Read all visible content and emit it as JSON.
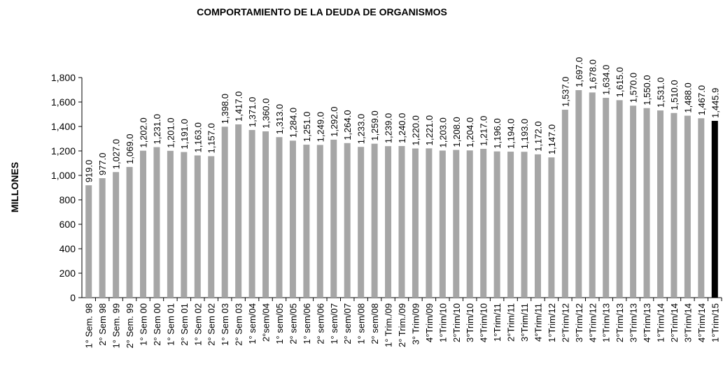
{
  "chart_data": {
    "type": "bar",
    "title": "COMPORTAMIENTO DE LA DEUDA DE ORGANISMOS",
    "y_label": "MILLONES",
    "categories": [
      "1° Sem. 98",
      "2° Sem 98",
      "1° Sem. 99",
      "2° Sem. 99",
      "1° Sem 00",
      "2° Sem 00",
      "1° Sem 01",
      "2° Sem 01",
      "1° Sem 02",
      "2° Sem 02",
      "1° Sem 03",
      "2° Sem 03",
      "1° sem/04",
      "2°sem/04",
      "1° sem/05",
      "2° sem/05",
      "1° sem/06",
      "2° sem/06",
      "1° sem/07",
      "2° sem/07",
      "1° sem/08",
      "2° sem/08",
      "1° Trim./09",
      "2° Trim./09",
      "3° Trim/09",
      "4°Trim/09",
      "1°Trim/10",
      "2°Trim/10",
      "3°Trim/10",
      "4°Trim/10",
      "1°Trim/11",
      "2°Trim/11",
      "3°Trim/11",
      "4°Trim/11",
      "1°Trim/12",
      "2°Trim/12",
      "3°Trim/12",
      "4°Trim/12",
      "1°Trim/13",
      "2°Trim/13",
      "3°Trim/13",
      "4°Trim/13",
      "1°Trim/14",
      "2°Trim/14",
      "3°Trim/14",
      "4°Trim/14",
      "1°Trim/15"
    ],
    "values": [
      919,
      977,
      1027,
      1069,
      1202,
      1231,
      1201,
      1191,
      1163,
      1157,
      1398,
      1417,
      1371,
      1360,
      1313,
      1284,
      1251,
      1249,
      1292,
      1264,
      1233,
      1259,
      1239,
      1240,
      1220,
      1221,
      1203,
      1208,
      1204,
      1217,
      1196,
      1194,
      1193,
      1172,
      1147,
      1537,
      1697,
      1678,
      1634,
      1615,
      1570,
      1550,
      1531,
      1510,
      1488,
      1467,
      1445.9
    ],
    "value_labels": [
      "919.0",
      "977.0",
      "1,027.0",
      "1,069.0",
      "1,202.0",
      "1,231.0",
      "1,201.0",
      "1,191.0",
      "1,163.0",
      "1,157.0",
      "1,398.0",
      "1,417.0",
      "1,371.0",
      "1,360.0",
      "1,313.0",
      "1,284.0",
      "1,251.0",
      "1,249.0",
      "1,292.0",
      "1,264.0",
      "1,233.0",
      "1,259.0",
      "1,239.0",
      "1,240.0",
      "1,220.0",
      "1,221.0",
      "1,203.0",
      "1,208.0",
      "1,204.0",
      "1,217.0",
      "1,196.0",
      "1,194.0",
      "1,193.0",
      "1,172.0",
      "1,147.0",
      "1,537.0",
      "1,697.0",
      "1,678.0",
      "1,634.0",
      "1,615.0",
      "1,570.0",
      "1,550.0",
      "1,531.0",
      "1,510.0",
      "1,488.0",
      "1,467.0",
      "1,445.9"
    ],
    "colors": [
      "#a6a6a6",
      "#a6a6a6",
      "#a6a6a6",
      "#a6a6a6",
      "#a6a6a6",
      "#a6a6a6",
      "#a6a6a6",
      "#a6a6a6",
      "#a6a6a6",
      "#a6a6a6",
      "#a6a6a6",
      "#a6a6a6",
      "#a6a6a6",
      "#a6a6a6",
      "#a6a6a6",
      "#a6a6a6",
      "#a6a6a6",
      "#a6a6a6",
      "#a6a6a6",
      "#a6a6a6",
      "#a6a6a6",
      "#a6a6a6",
      "#a6a6a6",
      "#a6a6a6",
      "#a6a6a6",
      "#a6a6a6",
      "#a6a6a6",
      "#a6a6a6",
      "#a6a6a6",
      "#a6a6a6",
      "#a6a6a6",
      "#a6a6a6",
      "#a6a6a6",
      "#a6a6a6",
      "#a6a6a6",
      "#a6a6a6",
      "#a6a6a6",
      "#a6a6a6",
      "#a6a6a6",
      "#a6a6a6",
      "#a6a6a6",
      "#a6a6a6",
      "#a6a6a6",
      "#a6a6a6",
      "#a6a6a6",
      "#a6a6a6",
      "#000000"
    ],
    "ylim": [
      0,
      1800
    ],
    "yticks": [
      0,
      200,
      400,
      600,
      800,
      {
        "value": 1000,
        "label": "1,000"
      },
      {
        "value": 1200,
        "label": "1,200"
      },
      {
        "value": 1400,
        "label": "1,400"
      },
      {
        "value": 1600,
        "label": "1,600"
      },
      {
        "value": 1800,
        "label": "1,800"
      }
    ],
    "grid": false
  }
}
